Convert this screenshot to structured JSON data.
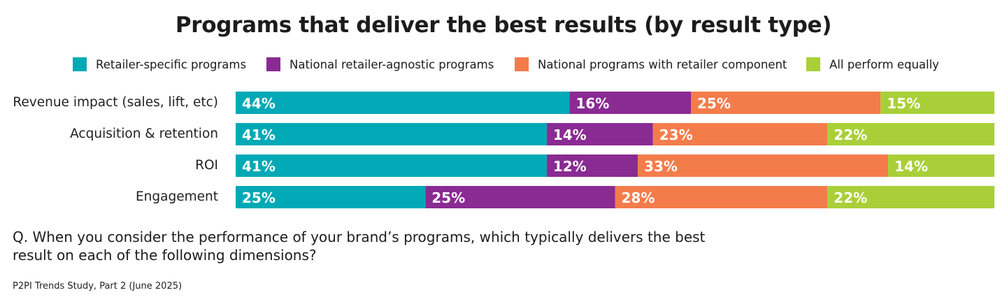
{
  "chart_data": {
    "type": "bar",
    "orientation": "horizontal",
    "stacked": true,
    "title": "Programs that deliver the best results (by result type)",
    "categories": [
      "Revenue impact (sales, lift, etc)",
      "Acquisition & retention",
      "ROI",
      "Engagement"
    ],
    "series": [
      {
        "name": "Retailer-specific programs",
        "color": "#00a9b5",
        "values": [
          44,
          41,
          41,
          25
        ]
      },
      {
        "name": "National retailer-agnostic programs",
        "color": "#8a2b93",
        "values": [
          16,
          14,
          12,
          25
        ]
      },
      {
        "name": "National programs with retailer component",
        "color": "#f47c4b",
        "values": [
          25,
          23,
          33,
          28
        ]
      },
      {
        "name": "All perform equally",
        "color": "#a9cf38",
        "values": [
          15,
          22,
          14,
          22
        ]
      }
    ],
    "value_suffix": "%",
    "xlim": [
      0,
      100
    ],
    "legend_position": "top",
    "grid": false
  },
  "footer": {
    "question": "Q. When you consider the performance of your brand’s programs, which typically delivers the best result on each of the following dimensions?",
    "source": "P2PI Trends Study, Part 2 (June 2025)"
  }
}
